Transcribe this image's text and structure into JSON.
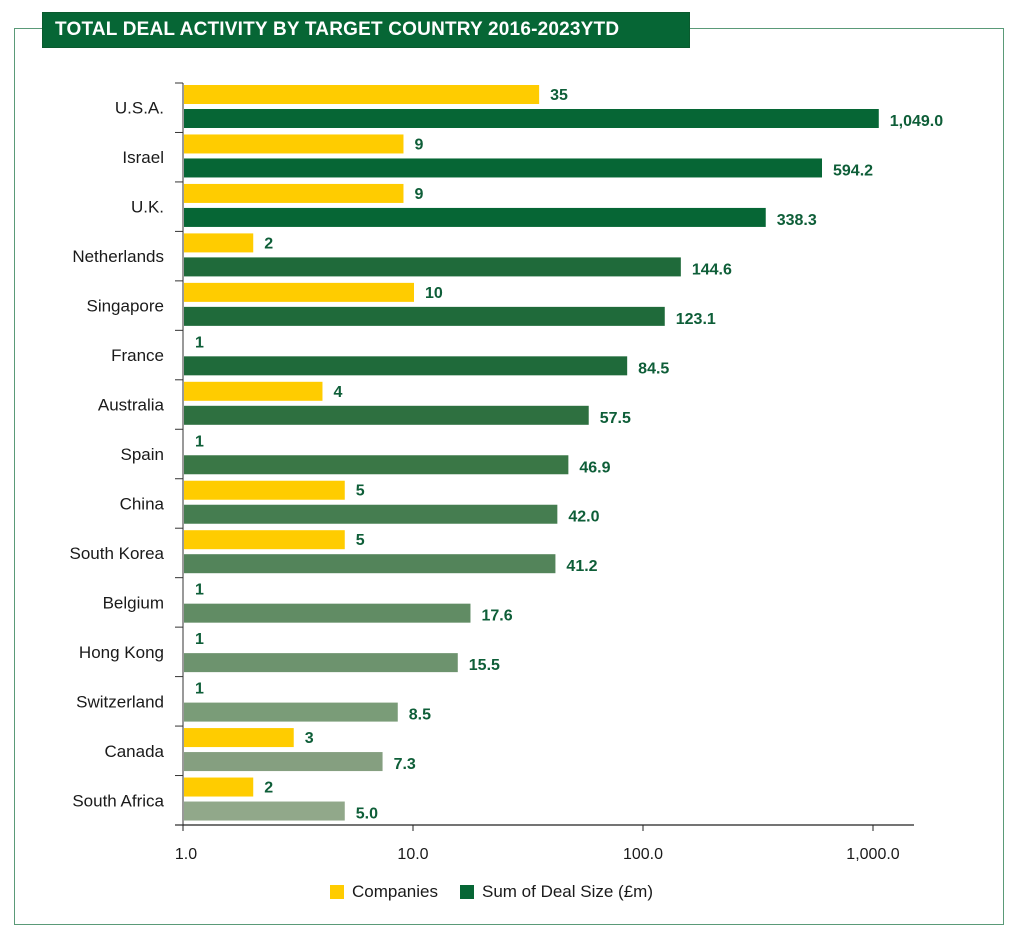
{
  "chart_data": {
    "type": "bar",
    "orientation": "horizontal",
    "title": "TOTAL DEAL ACTIVITY BY TARGET COUNTRY 2016-2023YTD",
    "xscale": "log",
    "xlim": [
      1,
      1400
    ],
    "xticks": [
      1,
      10,
      100,
      1000
    ],
    "xtick_labels": [
      "1.0",
      "10.0",
      "100.0",
      "1,000.0"
    ],
    "xlabel": "",
    "ylabel": "",
    "grid": false,
    "legend_position": "bottom",
    "categories": [
      "U.S.A.",
      "Israel",
      "U.K.",
      "Netherlands",
      "Singapore",
      "France",
      "Australia",
      "Spain",
      "China",
      "South Korea",
      "Belgium",
      "Hong Kong",
      "Switzerland",
      "Canada",
      "South Africa"
    ],
    "series": [
      {
        "name": "Companies",
        "color": "#FFCC00",
        "values": [
          35,
          9,
          9,
          2,
          10,
          1,
          4,
          1,
          5,
          5,
          1,
          1,
          1,
          3,
          2
        ],
        "labels": [
          "35",
          "9",
          "9",
          "2",
          "10",
          "1",
          "4",
          "1",
          "5",
          "5",
          "1",
          "1",
          "1",
          "3",
          "2"
        ]
      },
      {
        "name": "Sum of Deal Size (£m)",
        "color": "#066635",
        "bar_colors": [
          "#066635",
          "#066635",
          "#066635",
          "#1f6a3a",
          "#1f6a3a",
          "#1f6a3a",
          "#2e7040",
          "#3a7746",
          "#457d50",
          "#53845a",
          "#618c64",
          "#6d936e",
          "#7a9c78",
          "#859f80",
          "#91a88a"
        ],
        "values": [
          1049.0,
          594.2,
          338.3,
          144.6,
          123.1,
          84.5,
          57.5,
          46.9,
          42.0,
          41.2,
          17.6,
          15.5,
          8.5,
          7.3,
          5.0
        ],
        "labels": [
          "1,049.0",
          "594.2",
          "338.3",
          "144.6",
          "123.1",
          "84.5",
          "57.5",
          "46.9",
          "42.0",
          "41.2",
          "17.6",
          "15.5",
          "8.5",
          "7.3",
          "5.0"
        ]
      }
    ]
  },
  "legend": {
    "items": [
      {
        "label": "Companies",
        "color": "#FFCC00"
      },
      {
        "label": "Sum of Deal Size (£m)",
        "color": "#066635"
      }
    ]
  }
}
